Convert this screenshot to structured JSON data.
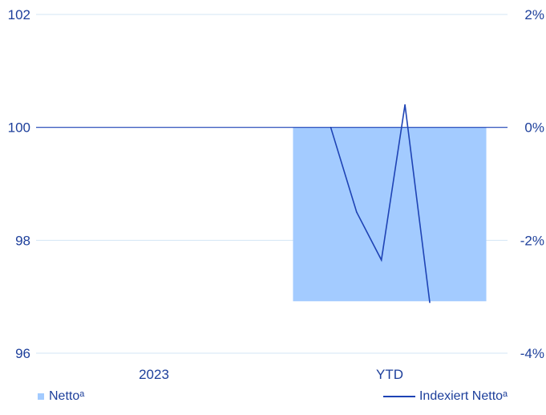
{
  "chart_data": {
    "type": "bar",
    "categories": [
      "2023",
      "YTD"
    ],
    "series": [
      {
        "name": "Nettoᵃ",
        "kind": "bar",
        "axis": "right",
        "values": [
          0,
          -3.08
        ]
      },
      {
        "name": "Indexiert Nettoᵃ",
        "kind": "line",
        "axis": "left",
        "points": [
          {
            "pos": 1.25,
            "value": 100
          },
          {
            "pos": 1.36,
            "value": 98.5
          },
          {
            "pos": 1.465,
            "value": 97.65
          },
          {
            "pos": 1.565,
            "value": 100.4
          },
          {
            "pos": 1.67,
            "value": 96.9
          }
        ]
      }
    ],
    "y_left": {
      "ticks": [
        "96",
        "98",
        "100",
        "102"
      ],
      "values": [
        96,
        98,
        100,
        102
      ],
      "lim": [
        96,
        102
      ]
    },
    "y_right": {
      "ticks": [
        "-4%",
        "-2%",
        "0%",
        "2%"
      ],
      "values": [
        -4,
        -2,
        0,
        2
      ],
      "lim": [
        -4,
        2
      ]
    },
    "grid": true,
    "legend_position": "bottom",
    "colors": {
      "bar": "#a3cbff",
      "line": "#1e43b5",
      "text": "#1d3f9b",
      "grid": "#d3e6f5",
      "zero_line": "#1e43b5"
    }
  }
}
